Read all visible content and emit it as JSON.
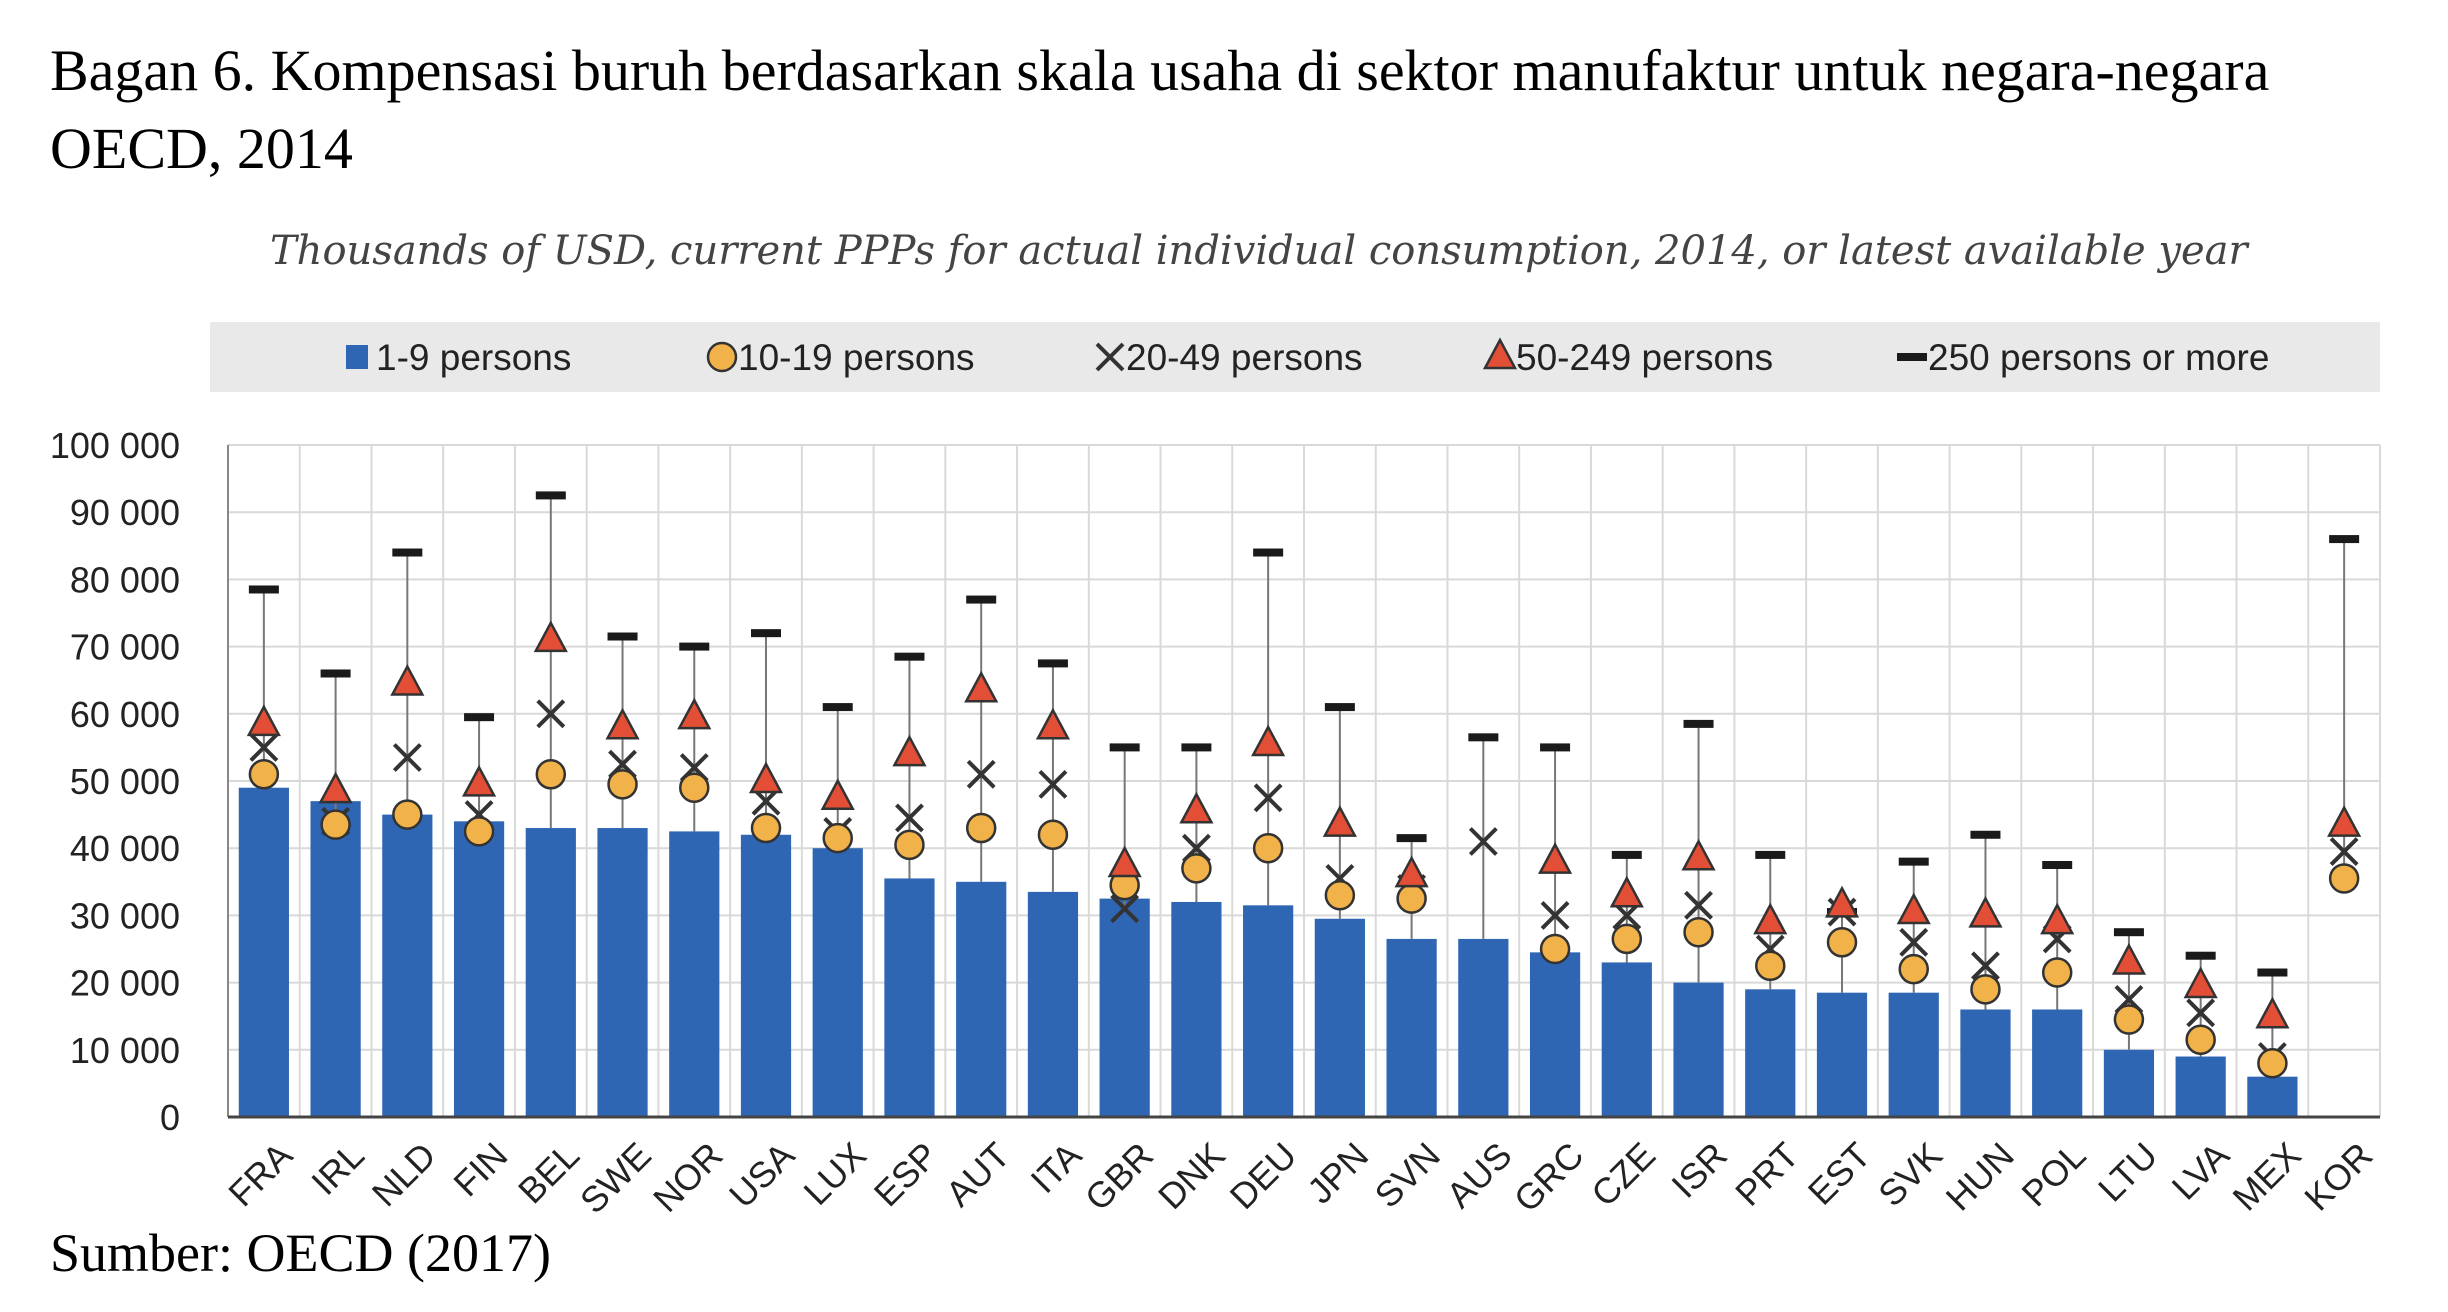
{
  "heading": "Bagan 6. Kompensasi buruh berdasarkan skala usaha di sektor manufaktur untuk negara-negara OECD, 2014",
  "source": "Sumber: OECD (2017)",
  "colors": {
    "bar": "#2f66b3",
    "circle": "#f2b24a",
    "triangle": "#e34f36",
    "cross": "#333333",
    "dash": "#1a1a1a",
    "legend_bg": "#e9e9ea",
    "plot_bg": "#ffffff",
    "grid": "#d9d9d9"
  },
  "chart_data": {
    "type": "bar",
    "subtitle": "Thousands of USD, current PPPs for actual individual consumption, 2014, or latest available year",
    "legend_position": "top",
    "grid": true,
    "ylim": [
      0,
      100000
    ],
    "yticks": [
      0,
      10000,
      20000,
      30000,
      40000,
      50000,
      60000,
      70000,
      80000,
      90000,
      100000
    ],
    "ytick_labels": [
      "0",
      "10 000",
      "20 000",
      "30 000",
      "40 000",
      "50 000",
      "60 000",
      "70 000",
      "80 000",
      "90 000",
      "100 000"
    ],
    "categories": [
      "FRA",
      "IRL",
      "NLD",
      "FIN",
      "BEL",
      "SWE",
      "NOR",
      "USA",
      "LUX",
      "ESP",
      "AUT",
      "ITA",
      "GBR",
      "DNK",
      "DEU",
      "JPN",
      "SVN",
      "AUS",
      "GRC",
      "CZE",
      "ISR",
      "PRT",
      "EST",
      "SVK",
      "HUN",
      "POL",
      "LTU",
      "LVA",
      "MEX",
      "KOR"
    ],
    "series": [
      {
        "name": "1-9 persons",
        "marker": "bar",
        "values": [
          49000,
          47000,
          45000,
          44000,
          43000,
          43000,
          42500,
          42000,
          40000,
          35500,
          35000,
          33500,
          32500,
          32000,
          31500,
          29500,
          26500,
          26500,
          24500,
          23000,
          20000,
          19000,
          18500,
          18500,
          16000,
          16000,
          10000,
          9000,
          6000,
          null
        ]
      },
      {
        "name": "10-19 persons",
        "marker": "circle",
        "values": [
          51000,
          43500,
          45000,
          42500,
          51000,
          49500,
          49000,
          43000,
          41500,
          40500,
          43000,
          42000,
          34500,
          37000,
          40000,
          33000,
          32500,
          null,
          25000,
          26500,
          27500,
          22500,
          26000,
          22000,
          19000,
          21500,
          14500,
          11500,
          8000,
          35500
        ]
      },
      {
        "name": "20-49 persons",
        "marker": "cross",
        "values": [
          55000,
          44000,
          53500,
          45000,
          60000,
          52500,
          52000,
          47000,
          42500,
          44500,
          51000,
          49500,
          31000,
          40000,
          47500,
          35500,
          34000,
          41000,
          30000,
          30000,
          31500,
          25000,
          30500,
          26000,
          22500,
          26500,
          17500,
          15500,
          9000,
          39500
        ]
      },
      {
        "name": "50-249 persons",
        "marker": "triangle",
        "values": [
          58500,
          48500,
          64500,
          49500,
          71000,
          58000,
          59500,
          50000,
          47500,
          54000,
          63500,
          58000,
          37500,
          45500,
          55500,
          43500,
          36000,
          null,
          38000,
          33000,
          38500,
          29000,
          31500,
          30500,
          30000,
          29000,
          23000,
          19500,
          15000,
          43500
        ]
      },
      {
        "name": "250 persons or more",
        "marker": "dash",
        "values": [
          78500,
          66000,
          84000,
          59500,
          92500,
          71500,
          70000,
          72000,
          61000,
          68500,
          77000,
          67500,
          55000,
          55000,
          84000,
          61000,
          41500,
          56500,
          55000,
          39000,
          58500,
          39000,
          30500,
          38000,
          42000,
          37500,
          27500,
          24000,
          21500,
          86000
        ]
      }
    ]
  }
}
